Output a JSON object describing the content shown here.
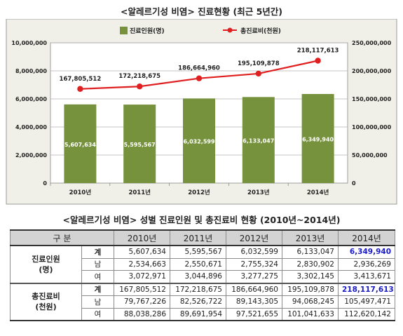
{
  "title": "<알레르기성 비염> 진료현황 (최근 5년간)",
  "chart_data": {
    "type": "bar",
    "categories": [
      "2010년",
      "2011년",
      "2012년",
      "2013년",
      "2014년"
    ],
    "series": [
      {
        "name": "진료인원(명)",
        "type": "bar",
        "axis": "left",
        "values": [
          5607634,
          5595567,
          6032599,
          6133047,
          6349940
        ],
        "labels": [
          "5,607,634",
          "5,595,567",
          "6,032,599",
          "6,133,047",
          "6,349,940"
        ]
      },
      {
        "name": "총진료비(천원)",
        "type": "line",
        "axis": "right",
        "values": [
          167805512,
          172218675,
          186664960,
          195109878,
          218117613
        ],
        "labels": [
          "167,805,512",
          "172,218,675",
          "186,664,960",
          "195,109,878",
          "218,117,613"
        ]
      }
    ],
    "ylim_left": [
      0,
      10000000
    ],
    "ylim_right": [
      0,
      250000000
    ],
    "yticks_left": [
      "0",
      "2,000,000",
      "4,000,000",
      "6,000,000",
      "8,000,000",
      "10,000,000"
    ],
    "yticks_right": [
      "0",
      "50,000,000",
      "100,000,000",
      "150,000,000",
      "200,000,000",
      "250,000,000"
    ],
    "grid": true,
    "legend": "top",
    "colors": {
      "bar": "#76923c",
      "line": "#e02020",
      "plot_bg": "#ffffff",
      "outer_bg": "#f0f0e8"
    }
  },
  "table": {
    "title": "<알레르기성 비염> 성별 진료인원 및 총진료비 현황 (2010년~2014년)",
    "header": [
      "구 분",
      "2010년",
      "2011년",
      "2012년",
      "2013년",
      "2014년"
    ],
    "groups": [
      {
        "label_line1": "진료인원",
        "label_line2": "(명)",
        "rows": [
          {
            "label": "계",
            "values": [
              "5,607,634",
              "5,595,567",
              "6,032,599",
              "6,133,047",
              "6,349,940"
            ]
          },
          {
            "label": "남",
            "values": [
              "2,534,663",
              "2,550,671",
              "2,755,324",
              "2,830,902",
              "2,936,269"
            ]
          },
          {
            "label": "여",
            "values": [
              "3,072,971",
              "3,044,896",
              "3,277,275",
              "3,302,145",
              "3,413,671"
            ]
          }
        ]
      },
      {
        "label_line1": "총진료비",
        "label_line2": "(천원)",
        "rows": [
          {
            "label": "계",
            "values": [
              "167,805,512",
              "172,218,675",
              "186,664,960",
              "195,109,878",
              "218,117,613"
            ]
          },
          {
            "label": "남",
            "values": [
              "79,767,226",
              "82,526,722",
              "89,143,305",
              "94,068,245",
              "105,497,471"
            ]
          },
          {
            "label": "여",
            "values": [
              "88,038,286",
              "89,691,954",
              "97,521,655",
              "101,041,633",
              "112,620,142"
            ]
          }
        ]
      }
    ],
    "highlight_color": "#1a1ac8"
  }
}
